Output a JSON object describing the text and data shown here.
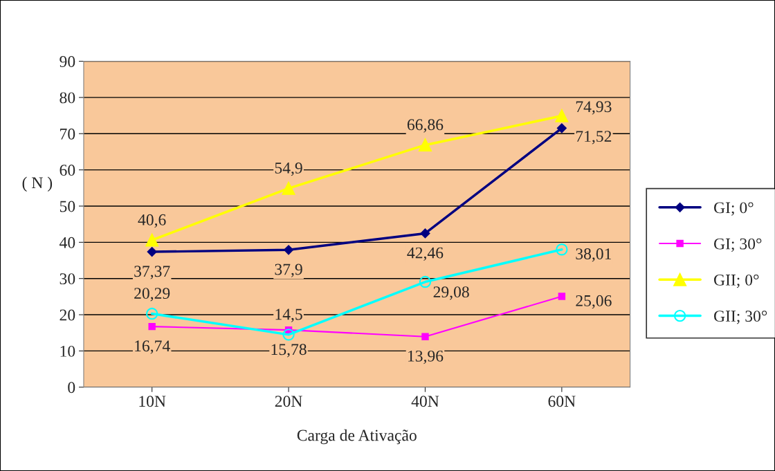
{
  "chart_data": {
    "type": "line",
    "xlabel": "Carga de Ativação",
    "ylabel": "( N )",
    "categories": [
      "10N",
      "20N",
      "40N",
      "60N"
    ],
    "ylim": [
      0,
      90
    ],
    "yticks": [
      0,
      10,
      20,
      30,
      40,
      50,
      60,
      70,
      80,
      90
    ],
    "grid": "y",
    "legend": "right",
    "series": [
      {
        "name": "GI; 0°",
        "color": "#000080",
        "marker": "diamond",
        "values": [
          37.37,
          37.9,
          42.46,
          71.52
        ],
        "value_labels": [
          "37,37",
          "37,9",
          "42,46",
          "71,52"
        ]
      },
      {
        "name": "GI; 30°",
        "color": "#ff00ff",
        "marker": "square",
        "values": [
          16.74,
          15.78,
          13.96,
          25.06
        ],
        "value_labels": [
          "16,74",
          "15,78",
          "13,96",
          "25,06"
        ]
      },
      {
        "name": "GII; 0°",
        "color": "#ffff00",
        "marker": "triangle",
        "values": [
          40.6,
          54.9,
          66.86,
          74.93
        ],
        "value_labels": [
          "40,6",
          "54,9",
          "66,86",
          "74,93"
        ]
      },
      {
        "name": "GII; 30°",
        "color": "#00ffff",
        "marker": "circle",
        "values": [
          20.29,
          14.5,
          29.08,
          38.01
        ],
        "value_labels": [
          "20,29",
          "14,5",
          "29,08",
          "38,01"
        ]
      }
    ]
  }
}
